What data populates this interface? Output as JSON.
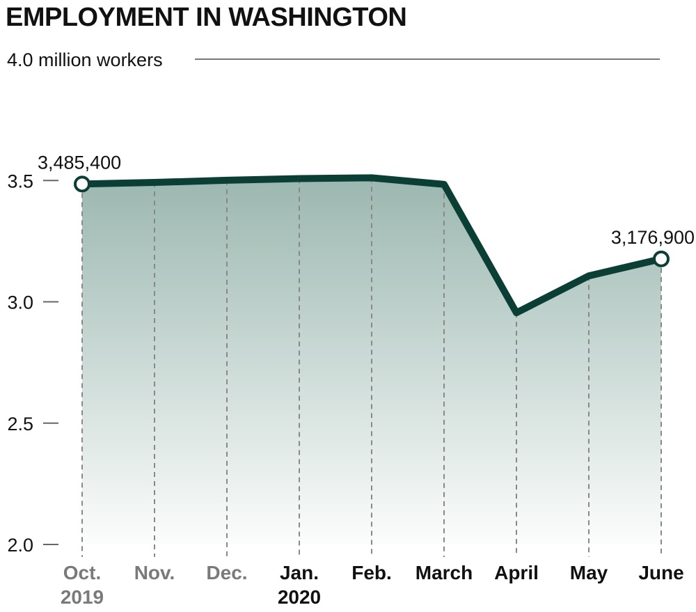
{
  "title": "EMPLOYMENT IN WASHINGTON",
  "colors": {
    "line": "#0b3f35",
    "fill": "#5e8b7e",
    "gridline": "#888888",
    "axis_text": "#111111",
    "muted_text": "#7a7a7a"
  },
  "chart_data": {
    "type": "area",
    "title": "EMPLOYMENT IN WASHINGTON",
    "ylabel": "million workers",
    "ylim": [
      2.0,
      4.0
    ],
    "yticks": [
      {
        "value": 2.0,
        "label": "2.0"
      },
      {
        "value": 2.5,
        "label": "2.5"
      },
      {
        "value": 3.0,
        "label": "3.0"
      },
      {
        "value": 3.5,
        "label": "3.5"
      }
    ],
    "top_tick": {
      "value": 4.0,
      "label": "4.0 million workers"
    },
    "categories": [
      "Oct. 2019",
      "Nov.",
      "Dec.",
      "Jan. 2020",
      "Feb.",
      "March",
      "April",
      "May",
      "June"
    ],
    "x_labels": [
      {
        "line1": "Oct.",
        "line2": "2019",
        "muted": true
      },
      {
        "line1": "Nov.",
        "line2": "",
        "muted": true
      },
      {
        "line1": "Dec.",
        "line2": "",
        "muted": true
      },
      {
        "line1": "Jan.",
        "line2": "2020",
        "muted": false
      },
      {
        "line1": "Feb.",
        "line2": "",
        "muted": false
      },
      {
        "line1": "March",
        "line2": "",
        "muted": false
      },
      {
        "line1": "April",
        "line2": "",
        "muted": false
      },
      {
        "line1": "May",
        "line2": "",
        "muted": false
      },
      {
        "line1": "June",
        "line2": "",
        "muted": false
      }
    ],
    "values": [
      3.4854,
      3.492,
      3.501,
      3.508,
      3.511,
      3.484,
      2.955,
      3.107,
      3.1769
    ],
    "annotations": [
      {
        "index": 0,
        "label": "3,485,400"
      },
      {
        "index": 8,
        "label": "3,176,900"
      }
    ],
    "grid": true
  }
}
